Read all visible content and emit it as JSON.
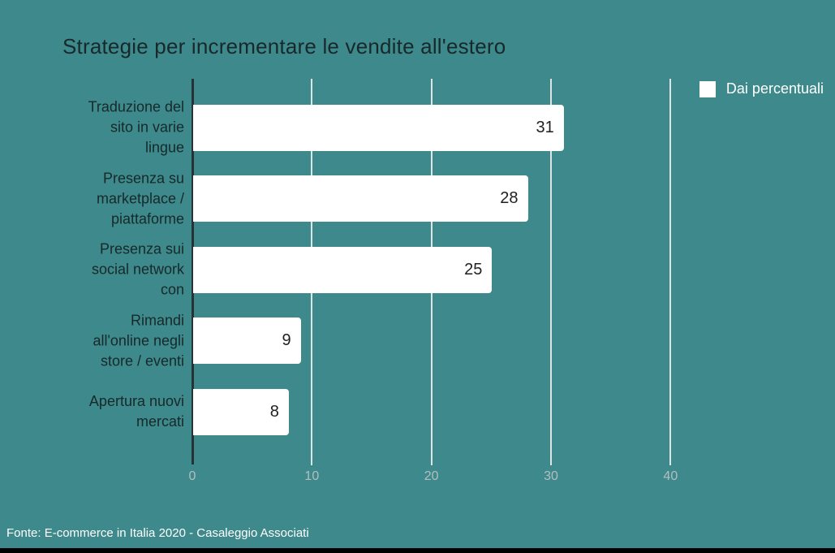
{
  "title": "Strategie per incrementare le vendite all'estero",
  "legend": {
    "label": "Dai percentuali",
    "swatch_color": "#ffffff"
  },
  "footer": {
    "source": "Fonte: E-commerce in Italia 2020 - Casaleggio Associati"
  },
  "colors": {
    "background": "#3e898c",
    "bar": "#ffffff",
    "title_text": "#17292a",
    "category_text": "#17292a",
    "value_text": "#1f1f1f",
    "gridline": "#dde4e4",
    "axis_line": "#263335",
    "tick_label": "#b3bec0",
    "legend_text": "#ffffff",
    "footer_text": "#ffffff",
    "bottom_strip": "#000000"
  },
  "chart_data": {
    "type": "bar",
    "orientation": "horizontal",
    "title": "Strategie per incrementare le vendite all'estero",
    "categories": [
      "Traduzione del sito in varie lingue",
      "Presenza su marketplace / piattaforme",
      "Presenza sui social network con",
      "Rimandi all'online negli store / eventi",
      "Apertura nuovi mercati"
    ],
    "values": [
      31,
      28,
      25,
      9,
      8
    ],
    "series_name": "Dai percentuali",
    "x_ticks": [
      0,
      10,
      20,
      30,
      40
    ],
    "xlim": [
      0,
      45
    ],
    "grid": "vertical",
    "legend_position": "top-right",
    "value_labels": "inside-end",
    "source": "Fonte: E-commerce in Italia 2020 - Casaleggio Associati"
  }
}
